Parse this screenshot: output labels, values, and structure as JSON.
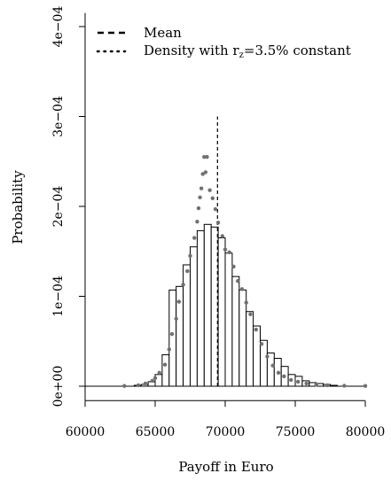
{
  "chart_data": {
    "type": "bar",
    "title": "",
    "xlabel": "Payoff in Euro",
    "ylabel": "Probability",
    "xlim": [
      60000,
      80000
    ],
    "ylim": [
      -1.6e-05,
      0.000415
    ],
    "x_ticks": [
      60000,
      65000,
      70000,
      75000,
      80000
    ],
    "x_tick_labels": [
      "60000",
      "65000",
      "70000",
      "75000",
      "80000"
    ],
    "y_ticks": [
      0,
      0.0001,
      0.0002,
      0.0003,
      0.0004
    ],
    "y_tick_labels": [
      "0e+00",
      "1e−04",
      "2e−04",
      "3e−04",
      "4e−04"
    ],
    "legend": {
      "position": "top-left",
      "entries": [
        {
          "label": "Mean",
          "style": "dashed"
        },
        {
          "label_main": "Density with r",
          "label_sub": "z",
          "label_tail": "=3.5% constant",
          "style": "dotted"
        }
      ]
    },
    "histogram": {
      "bin_width": 500,
      "bin_starts": [
        63500,
        64000,
        64500,
        65000,
        65500,
        66000,
        66500,
        67000,
        67500,
        68000,
        68500,
        69000,
        69500,
        70000,
        70500,
        71000,
        71500,
        72000,
        72500,
        73000,
        73500,
        74000,
        74500,
        75000,
        75500,
        76000,
        76500,
        77000,
        77500
      ],
      "values": [
        1e-06,
        2e-06,
        5e-06,
        1.3e-05,
        3.5e-05,
        0.000107,
        0.000111,
        0.000135,
        0.000155,
        0.000173,
        0.00018,
        0.000177,
        0.000165,
        0.000148,
        0.000122,
        0.000107,
        8.3e-05,
        6.7e-05,
        5.1e-05,
        3.7e-05,
        3.1e-05,
        2.2e-05,
        1.3e-05,
        1.1e-05,
        6e-06,
        4e-06,
        3e-06,
        2e-06,
        1e-06
      ]
    },
    "mean": {
      "x": 69450,
      "y_top": 0.0003
    },
    "density_points": {
      "color": "#707070",
      "x": [
        62800,
        63800,
        64300,
        64800,
        65000,
        65300,
        65700,
        66000,
        66200,
        66500,
        66700,
        67000,
        67300,
        67500,
        67800,
        68000,
        68100,
        68200,
        68300,
        68400,
        68500,
        68600,
        68700,
        68900,
        69100,
        69300,
        69500,
        69800,
        70000,
        70300,
        70600,
        70900,
        71200,
        71500,
        71800,
        72200,
        72600,
        73000,
        73400,
        73800,
        74200,
        74700,
        75200,
        75800,
        76500,
        77300,
        78500,
        80000
      ],
      "y": [
        3e-07,
        1e-06,
        3e-06,
        6e-06,
        9e-06,
        1.5e-05,
        2.4e-05,
        4.1e-05,
        5.8e-05,
        7.5e-05,
        9.4e-05,
        0.000113,
        0.000128,
        0.000145,
        0.000165,
        0.000183,
        0.000198,
        0.00021,
        0.00022,
        0.000236,
        0.000255,
        0.000238,
        0.000255,
        0.000218,
        0.000209,
        0.000197,
        0.000182,
        0.000167,
        0.000152,
        0.000149,
        0.000133,
        0.000117,
        0.000108,
        9.3e-05,
        8e-05,
        6.3e-05,
        4.7e-05,
        3.3e-05,
        2.3e-05,
        1.5e-05,
        1.1e-05,
        7e-06,
        5e-06,
        3e-06,
        1.5e-06,
        1e-06,
        5e-07,
        3e-07
      ]
    }
  }
}
